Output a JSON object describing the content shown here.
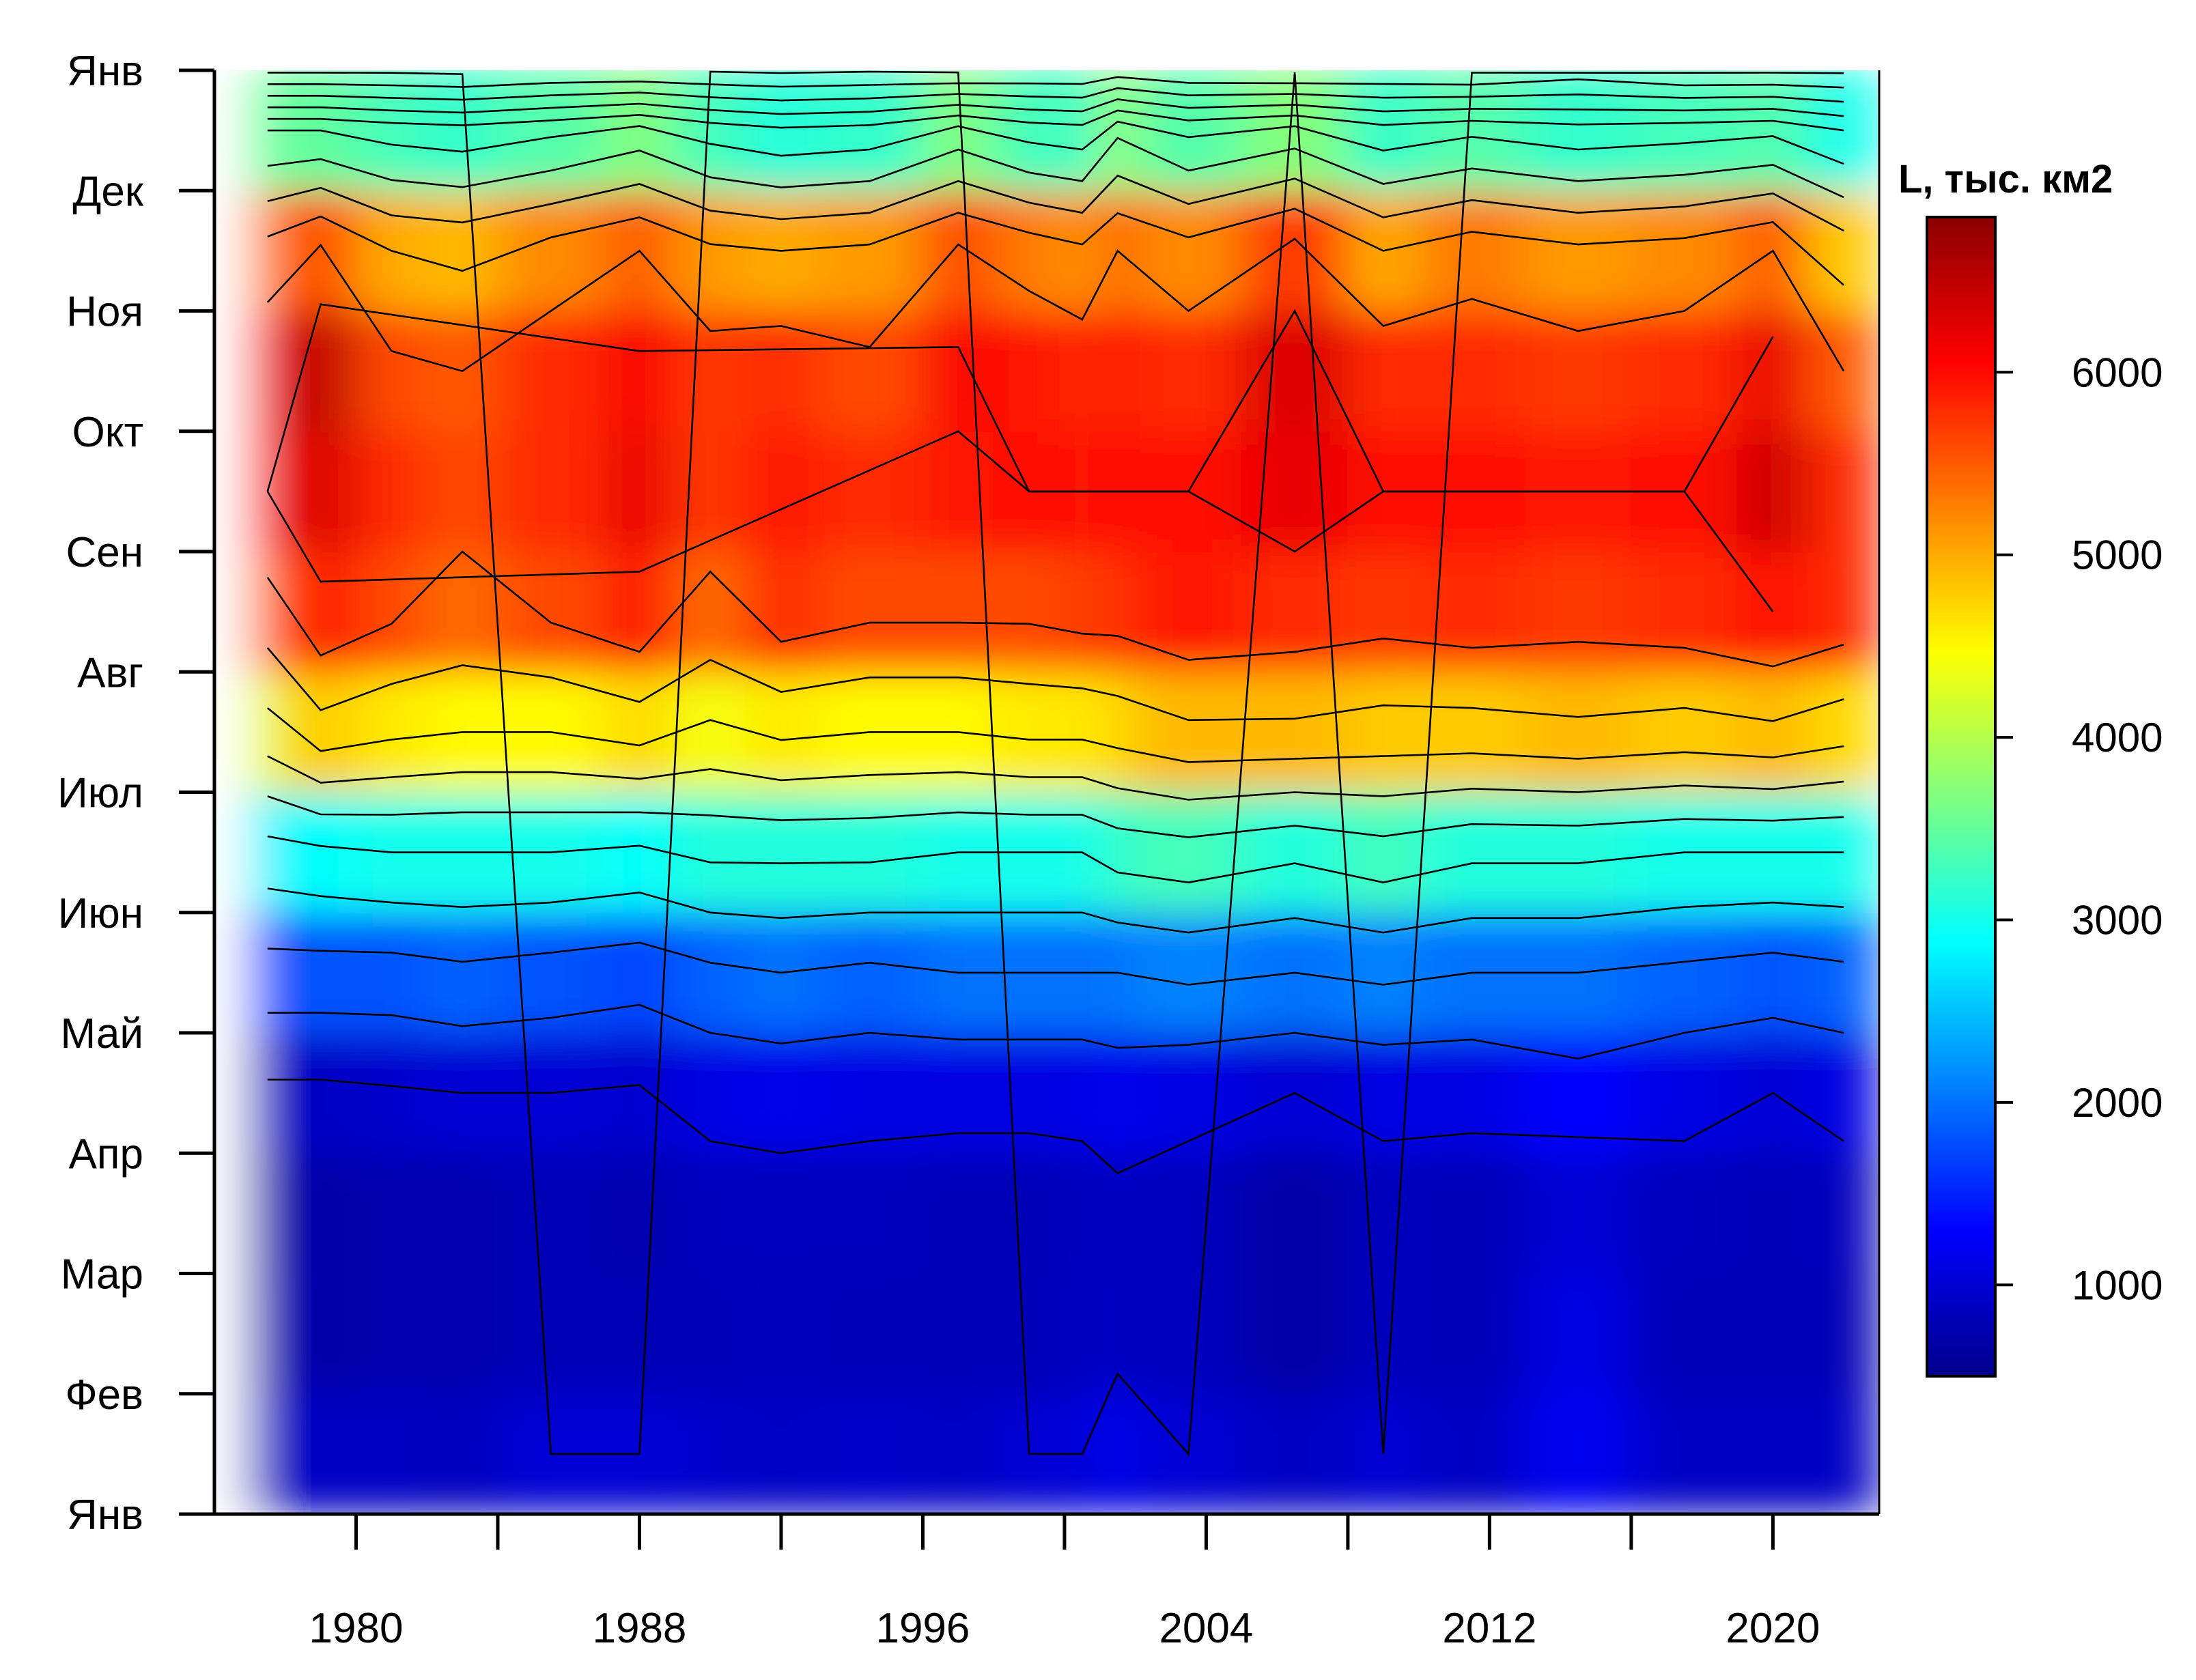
{
  "chart_data": {
    "type": "heatmap",
    "title": "",
    "xlabel": "",
    "ylabel": "",
    "x_ticks": [
      1976,
      1980,
      1984,
      1988,
      1992,
      1996,
      2000,
      2004,
      2008,
      2012,
      2016,
      2020
    ],
    "x_tick_labels": [
      {
        "value": 1980,
        "label": "1980"
      },
      {
        "value": 1988,
        "label": "1988"
      },
      {
        "value": 1996,
        "label": "1996"
      },
      {
        "value": 2004,
        "label": "2004"
      },
      {
        "value": 2012,
        "label": "2012"
      },
      {
        "value": 2020,
        "label": "2020"
      }
    ],
    "xlim": [
      1976,
      2023
    ],
    "y_tick_labels": [
      "Янв",
      "Фев",
      "Мар",
      "Апр",
      "Май",
      "Июн",
      "Июл",
      "Авг",
      "Сен",
      "Окт",
      "Ноя",
      "Дек",
      "Янв"
    ],
    "ylim": [
      0,
      12
    ],
    "colorbar": {
      "label": "L, тыс. км2",
      "ticks": [
        1000,
        2000,
        3000,
        4000,
        5000,
        6000
      ],
      "range": [
        500,
        6850
      ]
    },
    "colormap": [
      "#00008b",
      "#0000ff",
      "#0080ff",
      "#00ffff",
      "#80ff80",
      "#ffff00",
      "#ff8000",
      "#ff0000",
      "#8b0000"
    ],
    "contours": true,
    "contour_step": 500,
    "series": [
      {
        "year_from": 1976,
        "year_to": 1977,
        "monthly": [
          null,
          null,
          null,
          null,
          null,
          null,
          null,
          null,
          null,
          null,
          null,
          null
        ]
      },
      {
        "year_from": 1977,
        "year_to": 1978,
        "monthly": [
          900,
          850,
          800,
          900,
          1800,
          2800,
          4300,
          5300,
          6000,
          5900,
          5200,
          3500
        ]
      },
      {
        "year_from": 1978,
        "year_to": 1980,
        "monthly": [
          900,
          700,
          700,
          900,
          1800,
          2900,
          4800,
          5900,
          6300,
          6500,
          5600,
          3500
        ]
      },
      {
        "year_from": 1980,
        "year_to": 1982,
        "monthly": [
          900,
          750,
          750,
          950,
          1800,
          3000,
          4600,
          5600,
          5800,
          5600,
          5000,
          3300
        ]
      },
      {
        "year_from": 1982,
        "year_to": 1984,
        "monthly": [
          850,
          750,
          750,
          1000,
          1900,
          3000,
          4500,
          5400,
          5600,
          5500,
          4900,
          3200
        ]
      },
      {
        "year_from": 1984,
        "year_to": 1987,
        "monthly": [
          1000,
          800,
          800,
          1000,
          1800,
          3000,
          4500,
          5600,
          5800,
          5800,
          5200,
          3400
        ]
      },
      {
        "year_from": 1987,
        "year_to": 1989,
        "monthly": [
          1000,
          800,
          750,
          950,
          1700,
          2900,
          4700,
          5900,
          6200,
          6100,
          5500,
          3700
        ]
      },
      {
        "year_from": 1989,
        "year_to": 1991,
        "monthly": [
          950,
          800,
          850,
          1100,
          1900,
          3100,
          4400,
          5400,
          5700,
          5700,
          5100,
          3300
        ]
      },
      {
        "year_from": 1991,
        "year_to": 1993,
        "monthly": [
          900,
          850,
          850,
          1150,
          2000,
          3100,
          4600,
          5800,
          5900,
          5800,
          5000,
          3100
        ]
      },
      {
        "year_from": 1993,
        "year_to": 1996,
        "monthly": [
          950,
          800,
          850,
          1100,
          1900,
          3100,
          4500,
          5600,
          5800,
          5600,
          5100,
          3200
        ]
      },
      {
        "year_from": 1996,
        "year_to": 1998,
        "monthly": [
          900,
          800,
          800,
          1100,
          2000,
          3000,
          4500,
          5600,
          5900,
          6100,
          5600,
          3700
        ]
      },
      {
        "year_from": 1998,
        "year_to": 2000,
        "monthly": [
          1000,
          800,
          800,
          1100,
          2000,
          3000,
          4600,
          5600,
          6000,
          5900,
          5300,
          3300
        ]
      },
      {
        "year_from": 2000,
        "year_to": 2001,
        "monthly": [
          1000,
          900,
          850,
          1100,
          2000,
          3000,
          4600,
          5700,
          5900,
          5800,
          5100,
          3200
        ]
      },
      {
        "year_from": 2001,
        "year_to": 2002,
        "monthly": [
          1200,
          900,
          900,
          1200,
          2000,
          3200,
          4700,
          5700,
          6000,
          5900,
          5500,
          3900
        ]
      },
      {
        "year_from": 2002,
        "year_to": 2005,
        "monthly": [
          1000,
          850,
          850,
          1100,
          2100,
          3300,
          4900,
          5900,
          6000,
          5800,
          5200,
          3400
        ]
      },
      {
        "year_from": 2005,
        "year_to": 2008,
        "monthly": [
          900,
          700,
          700,
          1000,
          2000,
          3100,
          4900,
          5800,
          6200,
          6300,
          5700,
          3700
        ]
      },
      {
        "year_from": 2008,
        "year_to": 2010,
        "monthly": [
          1000,
          850,
          850,
          1100,
          2100,
          3300,
          4800,
          5700,
          6000,
          5800,
          5000,
          3200
        ]
      },
      {
        "year_from": 2010,
        "year_to": 2013,
        "monthly": [
          900,
          800,
          800,
          1100,
          2000,
          3100,
          4800,
          5800,
          6000,
          5800,
          5300,
          3400
        ]
      },
      {
        "year_from": 2013,
        "year_to": 2016,
        "monthly": [
          1200,
          1100,
          1000,
          1300,
          2000,
          3100,
          4900,
          5700,
          5900,
          5700,
          5100,
          3200
        ]
      },
      {
        "year_from": 2016,
        "year_to": 2019,
        "monthly": [
          900,
          800,
          850,
          1100,
          1900,
          3000,
          4800,
          5800,
          6000,
          5800,
          5200,
          3300
        ]
      },
      {
        "year_from": 2019,
        "year_to": 2021,
        "monthly": [
          900,
          800,
          800,
          1000,
          1800,
          3000,
          4900,
          6000,
          6400,
          6200,
          5500,
          3400
        ]
      },
      {
        "year_from": 2021,
        "year_to": 2023,
        "monthly": [
          900,
          800,
          850,
          1100,
          1900,
          3000,
          4700,
          5800,
          5800,
          5500,
          4800,
          3000
        ]
      }
    ]
  }
}
